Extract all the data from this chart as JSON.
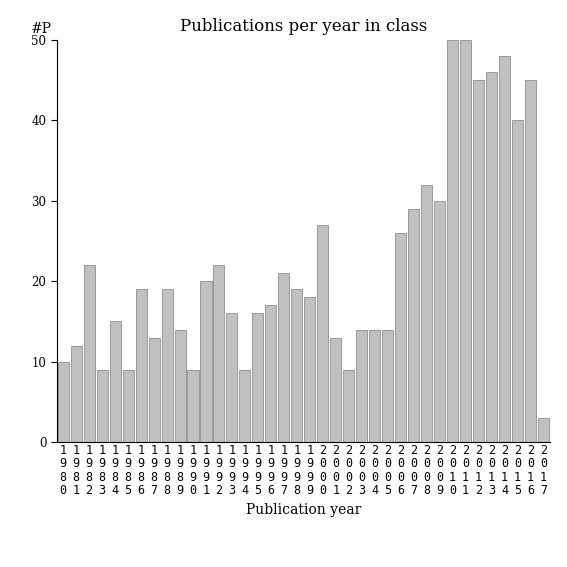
{
  "title": "Publications per year in class",
  "xlabel": "Publication year",
  "ylabel": "#P",
  "years": [
    "1980",
    "1981",
    "1982",
    "1983",
    "1984",
    "1985",
    "1986",
    "1987",
    "1988",
    "1989",
    "1990",
    "1991",
    "1992",
    "1993",
    "1994",
    "1995",
    "1996",
    "1997",
    "1998",
    "1999",
    "2000",
    "2001",
    "2002",
    "2003",
    "2004",
    "2005",
    "2006",
    "2007",
    "2008",
    "2009",
    "2010",
    "2011",
    "2012",
    "2013",
    "2014",
    "2015",
    "2016",
    "2017"
  ],
  "values": [
    10,
    12,
    22,
    9,
    15,
    9,
    19,
    13,
    19,
    14,
    9,
    20,
    22,
    16,
    9,
    16,
    17,
    21,
    19,
    18,
    27,
    13,
    9,
    14,
    14,
    14,
    26,
    29,
    32,
    30,
    50,
    50,
    45,
    46,
    48,
    40,
    45,
    3
  ],
  "bar_color": "#c0c0c0",
  "bar_edgecolor": "#808080",
  "ylim": [
    0,
    50
  ],
  "yticks": [
    0,
    10,
    20,
    30,
    40,
    50
  ],
  "bg_color": "#ffffff",
  "title_fontsize": 12,
  "label_fontsize": 10,
  "tick_fontsize": 8.5
}
